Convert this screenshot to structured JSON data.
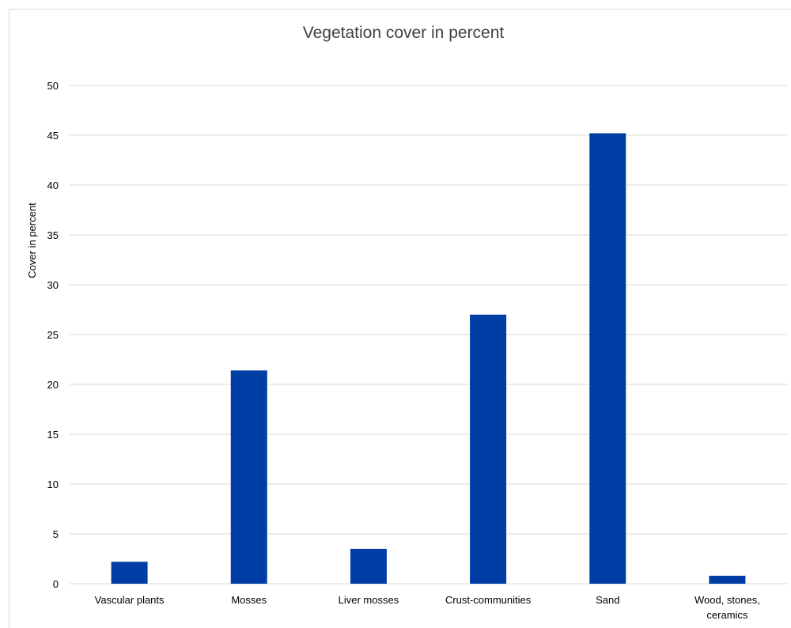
{
  "chart_data": {
    "type": "bar",
    "title": "Vegetation cover in percent",
    "xlabel": "",
    "ylabel": "Cover in percent",
    "categories": [
      [
        "Vascular plants"
      ],
      [
        "Mosses"
      ],
      [
        "Liver mosses"
      ],
      [
        "Crust-communities"
      ],
      [
        "Sand"
      ],
      [
        "Wood, stones,",
        "ceramics"
      ]
    ],
    "values": [
      2.2,
      21.4,
      3.5,
      27.0,
      45.2,
      0.8
    ],
    "ylim": [
      0,
      50
    ],
    "yticks": [
      0,
      5,
      10,
      15,
      20,
      25,
      30,
      35,
      40,
      45,
      50
    ],
    "grid": true,
    "legend": "none",
    "bar_color": "#003DA5",
    "gridline_color": "#d9d9d9"
  }
}
